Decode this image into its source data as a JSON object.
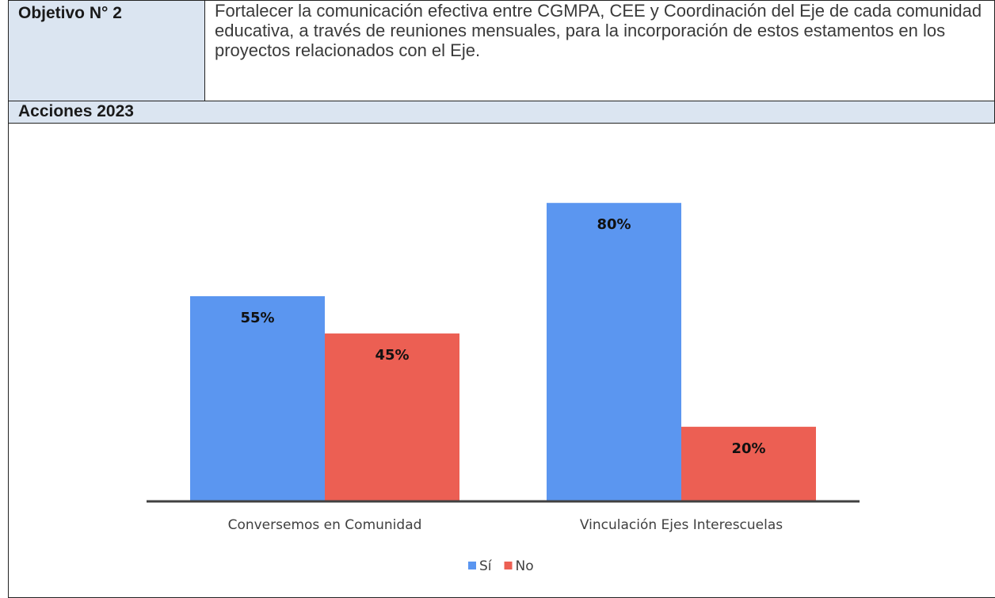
{
  "table": {
    "rows": [
      [
        "Objetivo N° 2",
        "Fortalecer la comunicación efectiva entre CGMPA, CEE y Coordinación del Eje de cada comunidad educativa, a través de reuniones mensuales, para la incorporación de estos estamentos en los proyectos relacionados con el Eje."
      ],
      [
        "Acciones 2023"
      ]
    ]
  },
  "chart_data": {
    "type": "bar",
    "categories": [
      "Conversemos en Comunidad",
      "Vinculación Ejes Interescuelas"
    ],
    "series": [
      {
        "name": "Sí",
        "color": "#5b96f0",
        "values": [
          55,
          80
        ],
        "value_labels": [
          "55%",
          "80%"
        ]
      },
      {
        "name": "No",
        "color": "#ec5f53",
        "values": [
          45,
          20
        ],
        "value_labels": [
          "45%",
          "20%"
        ]
      }
    ],
    "legend": "bottom"
  }
}
